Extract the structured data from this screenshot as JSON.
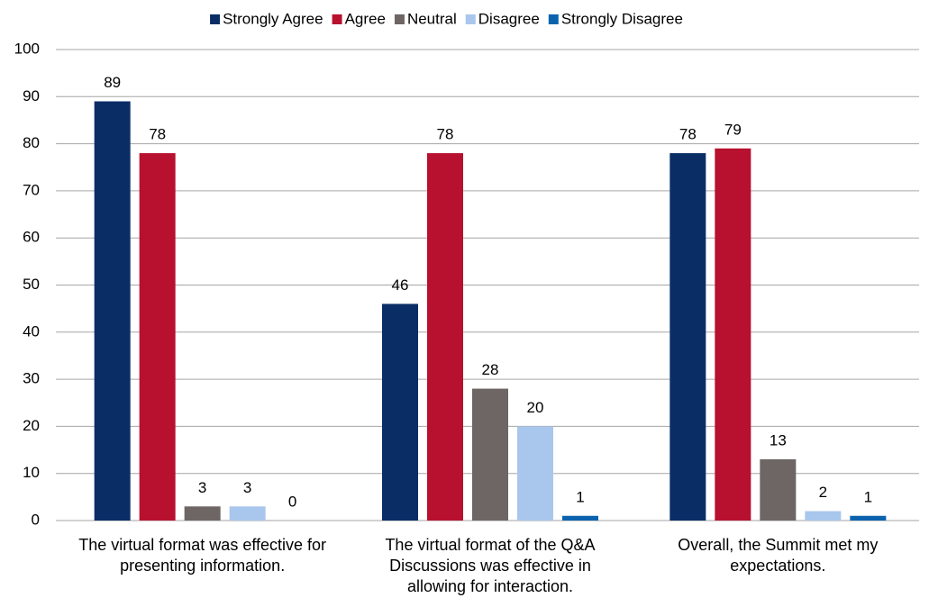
{
  "chart_data": {
    "type": "bar",
    "categories": [
      "The virtual format was effective for presenting information.",
      "The virtual format of the Q&A Discussions was effective in allowing for interaction.",
      "Overall, the Summit met my expectations."
    ],
    "series": [
      {
        "name": "Strongly Agree",
        "color": "#0b2d66",
        "values": [
          89,
          46,
          78
        ]
      },
      {
        "name": "Agree",
        "color": "#b8102f",
        "values": [
          78,
          78,
          79
        ]
      },
      {
        "name": "Neutral",
        "color": "#6e6565",
        "values": [
          3,
          28,
          13
        ]
      },
      {
        "name": "Disagree",
        "color": "#a9c7ec",
        "values": [
          3,
          20,
          2
        ]
      },
      {
        "name": "Strongly Disagree",
        "color": "#0b63ae",
        "values": [
          0,
          1,
          1
        ]
      }
    ],
    "ylim": [
      0,
      100
    ],
    "yticks": [
      0,
      10,
      20,
      30,
      40,
      50,
      60,
      70,
      80,
      90,
      100
    ],
    "grid": true,
    "legend": "top"
  }
}
